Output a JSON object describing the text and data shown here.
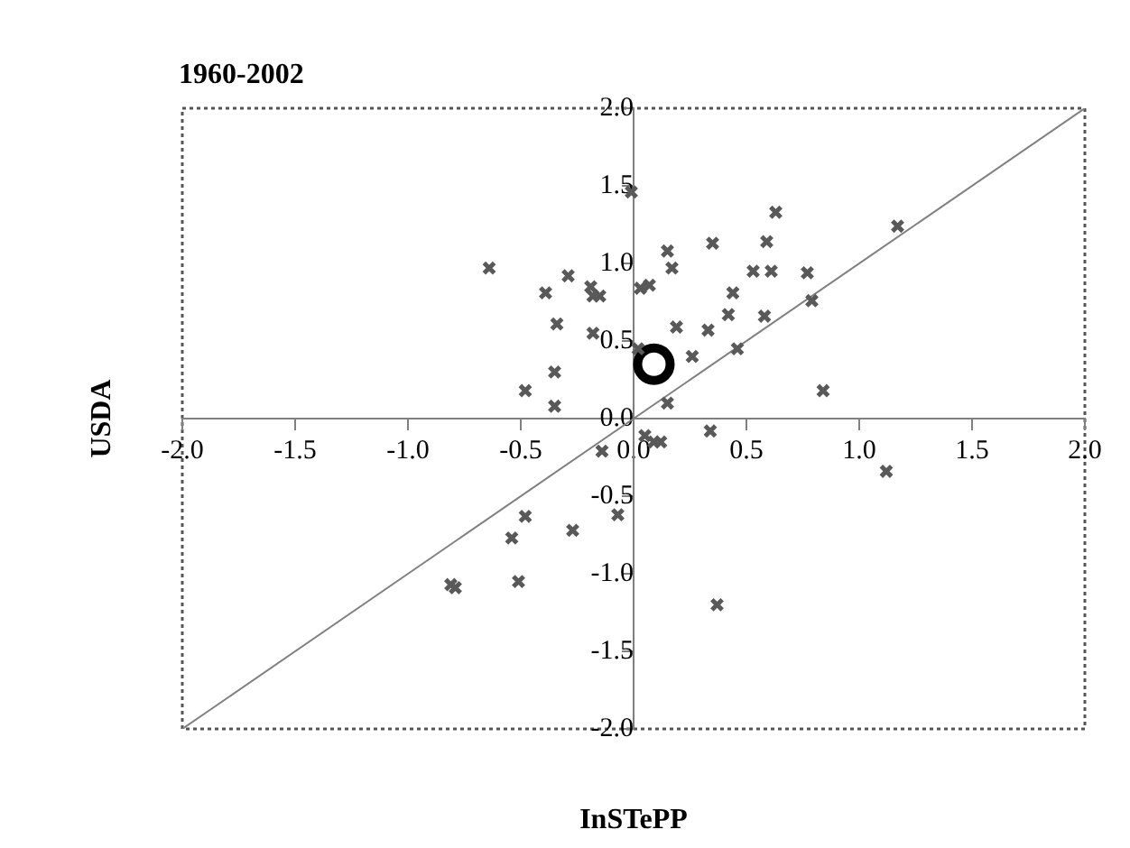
{
  "chart_data": {
    "type": "scatter",
    "title": "1960-2002",
    "xlabel": "InSTePP",
    "ylabel": "USDA",
    "xlim": [
      -2,
      2
    ],
    "ylim": [
      -2,
      2
    ],
    "xticks": [
      {
        "value": -2,
        "label": "-2.0"
      },
      -1.5,
      {
        "value": -1,
        "label": "-1.0"
      },
      -0.5,
      {
        "value": 0,
        "label": "0.0"
      },
      0.5,
      {
        "value": 1,
        "label": "1.0"
      },
      1.5,
      {
        "value": 2,
        "label": "2.0"
      }
    ],
    "yticks": [
      {
        "value": -2,
        "label": "-2.0"
      },
      -1.5,
      {
        "value": -1,
        "label": "-1.0"
      },
      -0.5,
      {
        "value": 0,
        "label": "0.0"
      },
      0.5,
      {
        "value": 1,
        "label": "1.0"
      },
      1.5,
      {
        "value": 2,
        "label": "2.0"
      }
    ],
    "grid": false,
    "legend": false,
    "marker": "cross",
    "series": [
      {
        "color": "#595959",
        "x": [
          -0.01,
          -0.64,
          -0.39,
          -0.29,
          -0.34,
          -0.19,
          -0.18,
          -0.15,
          -0.18,
          -0.35,
          -0.48,
          -0.35,
          0.02,
          0.03,
          0.07,
          0.15,
          0.17,
          0.35,
          0.63,
          0.59,
          0.53,
          0.61,
          0.77,
          0.79,
          1.17,
          0.44,
          0.42,
          0.58,
          0.19,
          0.33,
          0.26,
          0.46,
          0.84,
          0.15,
          -0.14,
          -0.48,
          -0.54,
          -0.27,
          -0.07,
          -0.81,
          -0.79,
          -0.51,
          0.05,
          0.09,
          0.12,
          0.34,
          1.12,
          0.37
        ],
        "values": [
          1.46,
          0.97,
          0.81,
          0.92,
          0.61,
          0.85,
          0.79,
          0.79,
          0.55,
          0.3,
          0.18,
          0.08,
          0.45,
          0.84,
          0.86,
          1.08,
          0.97,
          1.13,
          1.33,
          1.14,
          0.95,
          0.95,
          0.94,
          0.76,
          1.24,
          0.81,
          0.67,
          0.66,
          0.59,
          0.57,
          0.4,
          0.45,
          0.18,
          0.1,
          -0.21,
          -0.63,
          -0.77,
          -0.72,
          -0.62,
          -1.07,
          -1.09,
          -1.05,
          -0.11,
          -0.15,
          -0.15,
          -0.08,
          -0.34,
          -1.2
        ]
      },
      {
        "type": "line",
        "color": "#808080",
        "marker": "none",
        "x": [
          -2,
          2
        ],
        "values": [
          -2,
          2
        ]
      },
      {
        "color": "#000000",
        "marker": "circle",
        "x": [
          0.09
        ],
        "values": [
          0.35
        ]
      }
    ]
  }
}
